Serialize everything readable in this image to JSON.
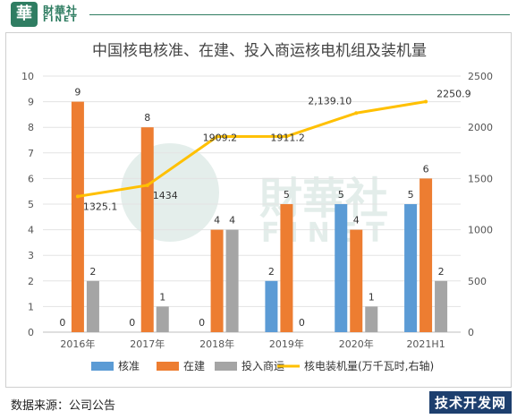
{
  "header": {
    "logo_char": "華",
    "brand_cn": "財華社",
    "brand_en": "FINET"
  },
  "watermark": {
    "cn": "財華社",
    "en": "FINET"
  },
  "chart_data": {
    "type": "bar",
    "title": "中国核电核准、在建、投入商运核电机组及装机量",
    "categories": [
      "2016年",
      "2017年",
      "2018年",
      "2019年",
      "2020年",
      "2021H1"
    ],
    "series": [
      {
        "name": "核准",
        "kind": "bar",
        "axis": "left",
        "color": "#5b9bd5",
        "values": [
          0,
          0,
          0,
          2,
          5,
          5
        ]
      },
      {
        "name": "在建",
        "kind": "bar",
        "axis": "left",
        "color": "#ed7d31",
        "values": [
          9,
          8,
          4,
          5,
          4,
          6
        ]
      },
      {
        "name": "投入商运",
        "kind": "bar",
        "axis": "left",
        "color": "#a5a5a5",
        "values": [
          2,
          1,
          4,
          0,
          1,
          2
        ]
      },
      {
        "name": "核电装机量(万千瓦时,右轴)",
        "kind": "line",
        "axis": "right",
        "color": "#ffc000",
        "values": [
          1325.1,
          1434,
          1909.2,
          1911.2,
          2139.1,
          2250.9
        ]
      }
    ],
    "line_labels": [
      "1325.1",
      "1434",
      "1909.2",
      "1911.2",
      "2,139.10",
      "2250.9"
    ],
    "ylim_left": [
      0,
      10
    ],
    "ylim_right": [
      0,
      2500
    ],
    "left_ticks": [
      "0",
      "1",
      "2",
      "3",
      "4",
      "5",
      "6",
      "7",
      "8",
      "9",
      "10"
    ],
    "right_ticks": [
      "0",
      "500",
      "1000",
      "1500",
      "2000",
      "2500"
    ],
    "grid": true,
    "legend_position": "bottom"
  },
  "footer": {
    "source": "数据来源：公司公告",
    "brand": "技术开发网"
  }
}
